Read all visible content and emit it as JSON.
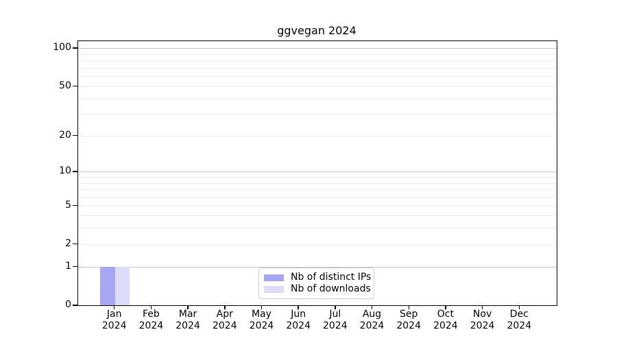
{
  "figure": {
    "background": "#ffffff"
  },
  "chart_data": {
    "type": "bar",
    "title": "ggvegan 2024",
    "categories": [
      "Jan 2024",
      "Feb 2024",
      "Mar 2024",
      "Apr 2024",
      "May 2024",
      "Jun 2024",
      "Jul 2024",
      "Aug 2024",
      "Sep 2024",
      "Oct 2024",
      "Nov 2024",
      "Dec 2024"
    ],
    "series": [
      {
        "name": "Nb of distinct IPs",
        "color": "#a6a6f2",
        "values": [
          1,
          0,
          0,
          0,
          0,
          0,
          0,
          0,
          0,
          0,
          0,
          0
        ]
      },
      {
        "name": "Nb of downloads",
        "color": "#dcdcf8",
        "values": [
          1,
          0,
          0,
          0,
          0,
          0,
          0,
          0,
          0,
          0,
          0,
          0
        ]
      }
    ],
    "xlabel": "",
    "ylabel": "",
    "y_axis": {
      "scale": "log1p",
      "range": [
        0,
        100
      ],
      "tick_labels": [
        0,
        1,
        2,
        5,
        10,
        20,
        50,
        100
      ],
      "decade_gridlines": [
        1,
        10,
        100
      ],
      "minor_gridlines": [
        2,
        3,
        4,
        5,
        6,
        7,
        8,
        9,
        20,
        30,
        40,
        50,
        60,
        70,
        80,
        90
      ]
    },
    "grid": true,
    "legend_position": "bottom-center",
    "colors": {
      "grid_decade": "#c3c3c3",
      "grid_minor": "#eaeaea",
      "spine": "#000000",
      "text": "#000000",
      "legend_border": "#cccccc"
    }
  }
}
